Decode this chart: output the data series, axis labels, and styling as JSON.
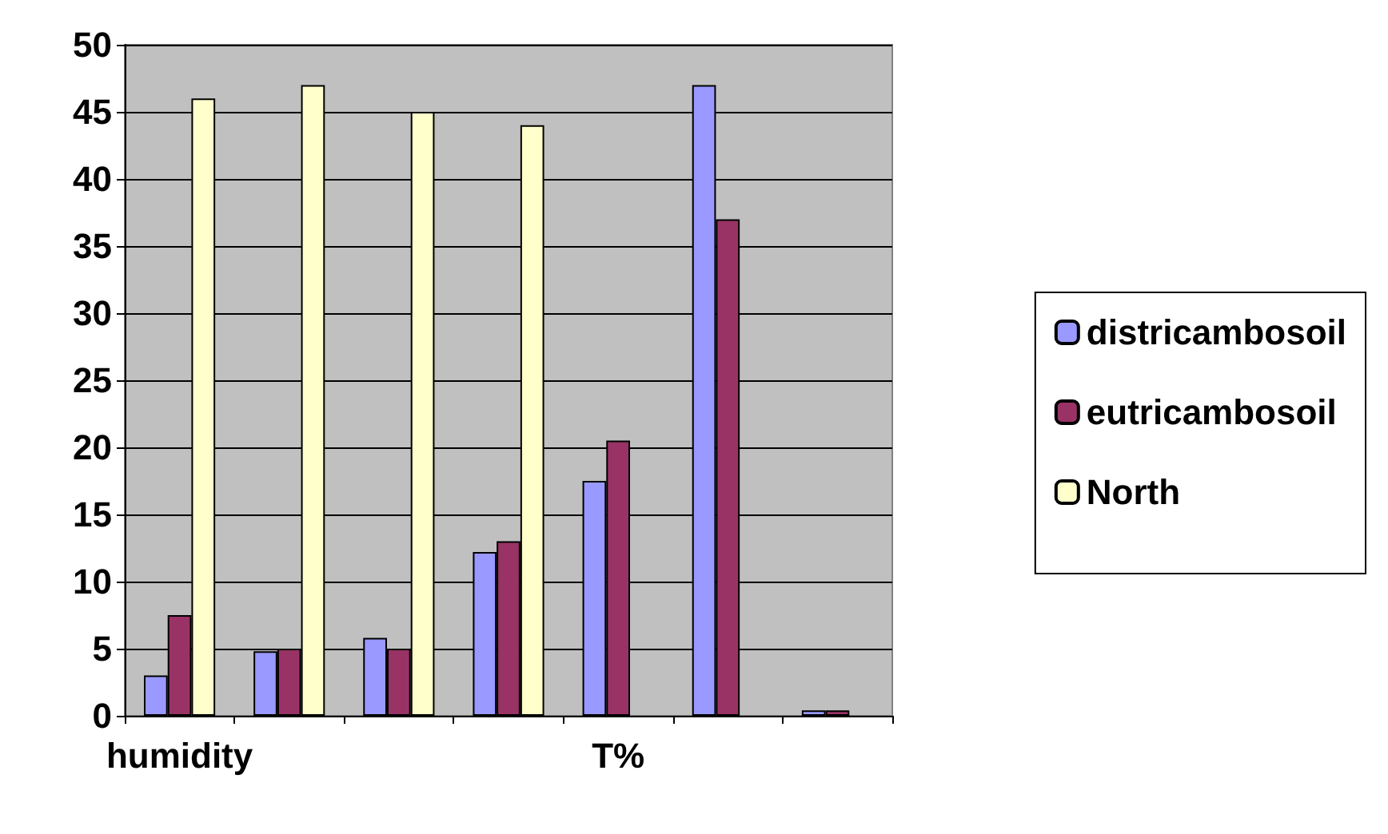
{
  "chart_data": {
    "type": "bar",
    "categories": [
      "humidity",
      null,
      null,
      null,
      "T%",
      null,
      null
    ],
    "series": [
      {
        "name": "districambosoil",
        "color": "#9999ff",
        "values": [
          3,
          4.8,
          5.8,
          12.2,
          17.5,
          47,
          0.4
        ]
      },
      {
        "name": "eutricambosoil",
        "color": "#993366",
        "values": [
          7.5,
          5,
          5,
          13,
          20.5,
          37,
          0.4
        ]
      },
      {
        "name": "North",
        "color": "#ffffcc",
        "values": [
          46,
          47,
          45,
          44,
          null,
          null,
          null
        ]
      }
    ],
    "ylim": [
      0,
      50
    ],
    "yticks": [
      0,
      5,
      10,
      15,
      20,
      25,
      30,
      35,
      40,
      45,
      50
    ],
    "grid": "y",
    "legend": "right"
  }
}
